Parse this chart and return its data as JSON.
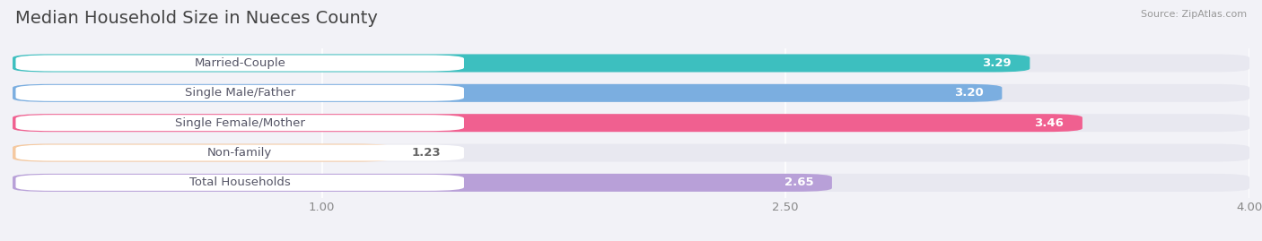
{
  "title": "Median Household Size in Nueces County",
  "source": "Source: ZipAtlas.com",
  "categories": [
    "Married-Couple",
    "Single Male/Father",
    "Single Female/Mother",
    "Non-family",
    "Total Households"
  ],
  "values": [
    3.29,
    3.2,
    3.46,
    1.23,
    2.65
  ],
  "bar_colors": [
    "#3dbfbf",
    "#7baee0",
    "#f06090",
    "#f5c9a0",
    "#b8a0d8"
  ],
  "xlim_min": 0.0,
  "xlim_max": 4.0,
  "xticks": [
    1.0,
    2.5,
    4.0
  ],
  "xtick_labels": [
    "1.00",
    "2.50",
    "4.00"
  ],
  "title_fontsize": 14,
  "label_fontsize": 9.5,
  "value_fontsize": 9.5,
  "bg_color": "#f2f2f7",
  "bar_bg_color": "#e8e8f0",
  "label_box_color": "#ffffff",
  "label_text_color": "#555566",
  "value_text_color_inside": "#ffffff",
  "value_text_color_outside": "#666666",
  "grid_color": "#ffffff",
  "bar_height": 0.6,
  "bar_spacing": 1.0
}
